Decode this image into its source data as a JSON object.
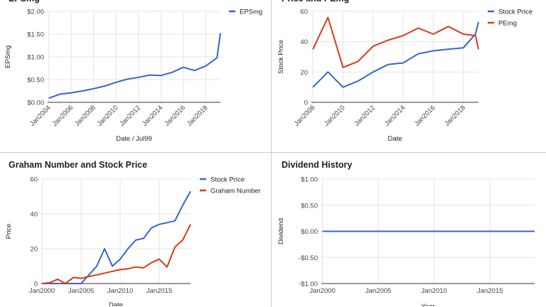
{
  "chart_data": [
    {
      "type": "line",
      "title": "EPSmg",
      "xlabel": "Date / Jul99",
      "ylabel": "EPSmg",
      "xlim": [
        2003.9,
        2019.3
      ],
      "ylim": [
        0,
        2
      ],
      "yticks": [
        "$0.00",
        "$0.50",
        "$1.00",
        "$1.50",
        "$2.00"
      ],
      "yticks_values": [
        0,
        0.5,
        1,
        1.5,
        2
      ],
      "xticks": [
        "Jan2004",
        "Jan2006",
        "Jan2008",
        "Jan2010",
        "Jan2012",
        "Jan2014",
        "Jan2016",
        "Jan2018"
      ],
      "xticks_values": [
        2004,
        2006,
        2008,
        2010,
        2012,
        2014,
        2016,
        2018
      ],
      "legend": "right",
      "grid": true,
      "series": [
        {
          "name": "EPSmg",
          "color": "#3366cc",
          "x": [
            2004.0,
            2005.0,
            2006.0,
            2007.0,
            2008.0,
            2009.0,
            2010.0,
            2011.0,
            2012.0,
            2013.0,
            2014.0,
            2015.0,
            2016.0,
            2017.0,
            2018.0,
            2019.0,
            2019.3
          ],
          "y": [
            0.09,
            0.18,
            0.21,
            0.25,
            0.3,
            0.36,
            0.44,
            0.51,
            0.55,
            0.6,
            0.59,
            0.66,
            0.77,
            0.7,
            0.8,
            0.98,
            1.52
          ]
        }
      ]
    },
    {
      "type": "line",
      "title": "Price and PEmg",
      "xlabel": "Date",
      "ylabel": "Stock Price",
      "xlim": [
        2007.9,
        2019.0
      ],
      "ylim": [
        0,
        60
      ],
      "yticks": [
        "0",
        "20",
        "40",
        "60"
      ],
      "yticks_values": [
        0,
        20,
        40,
        60
      ],
      "xticks": [
        "Jan2008",
        "Jan2010",
        "Jan2012",
        "Jan2014",
        "Jan2016",
        "Jan2018"
      ],
      "xticks_values": [
        2008,
        2010,
        2012,
        2014,
        2016,
        2018
      ],
      "legend": "right",
      "grid": true,
      "series": [
        {
          "name": "Stock Price",
          "color": "#3366cc",
          "x": [
            2008.0,
            2009.0,
            2010.0,
            2011.0,
            2012.0,
            2013.0,
            2014.0,
            2015.0,
            2016.0,
            2017.0,
            2018.0,
            2018.8,
            2019.0
          ],
          "y": [
            10,
            20,
            10,
            14,
            20,
            25,
            26,
            32,
            34,
            35,
            36,
            45,
            53
          ]
        },
        {
          "name": "PEmg",
          "color": "#dc3912",
          "x": [
            2008.0,
            2009.0,
            2010.0,
            2011.0,
            2012.0,
            2013.0,
            2014.0,
            2015.0,
            2016.0,
            2017.0,
            2018.0,
            2018.8,
            2019.0
          ],
          "y": [
            35,
            56,
            23,
            27,
            37,
            41,
            44,
            49,
            45,
            50,
            45,
            44,
            35
          ]
        }
      ]
    },
    {
      "type": "line",
      "title": "Graham Number and Stock Price",
      "xlabel": "Date",
      "ylabel": "Price",
      "xlim": [
        1999.9,
        2019.0
      ],
      "ylim": [
        0,
        60
      ],
      "yticks": [
        "0",
        "20",
        "40",
        "60"
      ],
      "yticks_values": [
        0,
        20,
        40,
        60
      ],
      "xticks": [
        "Jan2000",
        "Jan2005",
        "Jan2010",
        "Jan2015"
      ],
      "xticks_values": [
        2000,
        2005,
        2010,
        2015
      ],
      "legend": "right",
      "grid": true,
      "series": [
        {
          "name": "Stock Price",
          "color": "#3366cc",
          "x": [
            2000,
            2001,
            2002,
            2003,
            2004,
            2005,
            2006,
            2007,
            2008,
            2009,
            2010,
            2011,
            2012,
            2013,
            2014,
            2015,
            2016,
            2017,
            2018,
            2019
          ],
          "y": [
            0,
            0,
            0,
            0,
            0,
            0,
            5,
            10,
            20,
            10,
            14,
            20,
            25,
            26,
            32,
            34,
            35,
            36,
            45,
            53
          ]
        },
        {
          "name": "Graham Number",
          "color": "#dc3912",
          "x": [
            2000,
            2001,
            2002,
            2003,
            2004,
            2005,
            2006,
            2007,
            2008,
            2009,
            2010,
            2011,
            2012,
            2013,
            2014,
            2015,
            2016,
            2017,
            2018,
            2019
          ],
          "y": [
            0,
            0.5,
            2.5,
            0,
            3.5,
            3,
            4,
            5,
            6,
            7,
            8,
            8.5,
            9.5,
            9,
            12,
            14,
            9.5,
            21,
            25,
            34
          ]
        }
      ]
    },
    {
      "type": "line",
      "title": "Dividend History",
      "xlabel": "Year",
      "ylabel": "Dividend",
      "xlim": [
        1999.9,
        2019.0
      ],
      "ylim": [
        -1,
        1
      ],
      "yticks": [
        "-$1.00",
        "-$0.50",
        "$0.00",
        "$0.50",
        "$1.00"
      ],
      "yticks_values": [
        -1,
        -0.5,
        0,
        0.5,
        1
      ],
      "xticks": [
        "Jan2000",
        "Jan2005",
        "Jan2010",
        "Jan2015"
      ],
      "xticks_values": [
        2000,
        2005,
        2010,
        2015
      ],
      "legend": "none",
      "grid": true,
      "series": [
        {
          "name": "",
          "color": "#3366cc",
          "x": [
            2000,
            2019
          ],
          "y": [
            0,
            0
          ]
        }
      ]
    }
  ]
}
